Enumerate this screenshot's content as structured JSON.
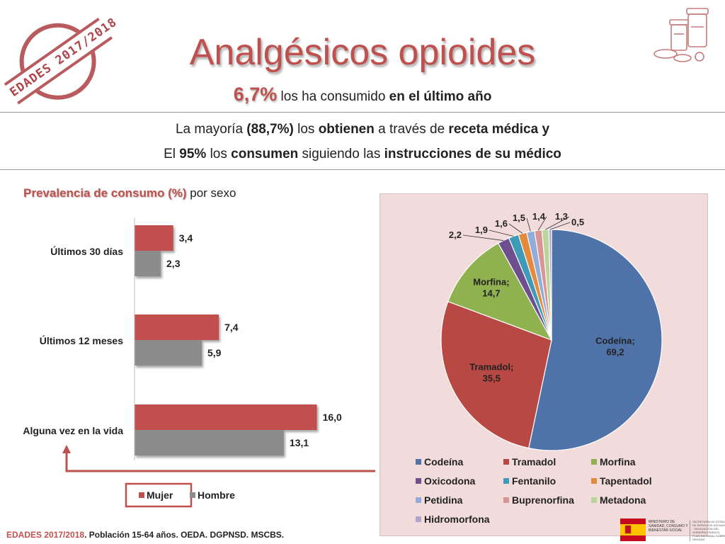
{
  "stamp": {
    "text": "EDADES 2017/2018"
  },
  "title": "Analgésicos opioides",
  "headline": {
    "pct": "6,7%",
    "text": " los ha consumido ",
    "bold": "en el último año"
  },
  "line1": {
    "a": "La mayoría ",
    "b": "(88,7%)",
    "c": " los ",
    "d": "obtienen",
    "e": " a través de ",
    "f": "receta médica y"
  },
  "line2": {
    "a": "El ",
    "b": "95%",
    "c": " los ",
    "d": "consumen",
    "e": " siguiendo las ",
    "f": "instrucciones de su médico"
  },
  "prevalence": {
    "title_red": "Prevalencia de consumo (%)",
    "title_rest": " por sexo"
  },
  "colors": {
    "mujer": "#c0504d",
    "hombre": "#8c8c8c",
    "accent": "#c0504d"
  },
  "footer": {
    "red": "EDADES 2017/2018",
    "rest": ". Población 15-64 años. OEDA. DGPNSD. MSCBS."
  },
  "ministry": {
    "line1": "MINISTERIO DE SANIDAD, CONSUMO Y BIENESTAR SOCIAL",
    "line2": "SECRETARÍA DE ESTADO DE SERVICIOS SOCIALES · DELEGACIÓN DEL GOBIERNO PARA EL PLAN NACIONAL SOBRE DROGAS"
  },
  "chart_data": [
    {
      "type": "bar",
      "orientation": "horizontal",
      "categories": [
        "Últimos 30 días",
        "Últimos 12 meses",
        "Alguna vez en la vida"
      ],
      "series": [
        {
          "name": "Mujer",
          "values": [
            3.4,
            7.4,
            16.0
          ],
          "labels": [
            "3,4",
            "7,4",
            "16,0"
          ],
          "color": "#c0504d"
        },
        {
          "name": "Hombre",
          "values": [
            2.3,
            5.9,
            13.1
          ],
          "labels": [
            "2,3",
            "5,9",
            "13,1"
          ],
          "color": "#8c8c8c"
        }
      ],
      "xlim": [
        0,
        20
      ],
      "legend": "bottom"
    },
    {
      "type": "pie",
      "categories": [
        "Codeína",
        "Tramadol",
        "Morfina",
        "Oxicodona",
        "Fentanilo",
        "Tapentadol",
        "Petidina",
        "Buprenorfina",
        "Metadona",
        "Hidromorfona"
      ],
      "values": [
        69.2,
        35.5,
        14.7,
        2.2,
        1.9,
        1.6,
        1.5,
        1.4,
        1.3,
        0.5
      ],
      "labels": [
        "Codeína;\n69,2",
        "Tramadol;\n35,5",
        "Morfina;\n14,7",
        "2,2",
        "1,9",
        "1,6",
        "1,5",
        "1,4",
        "1,3",
        "0,5"
      ],
      "colors": [
        "#4f73a8",
        "#b84843",
        "#8fb150",
        "#6d4f8f",
        "#3e9ab7",
        "#e38a3c",
        "#93acd7",
        "#d99594",
        "#b9d59a",
        "#b0a3cc"
      ],
      "legend": "bottom"
    }
  ]
}
